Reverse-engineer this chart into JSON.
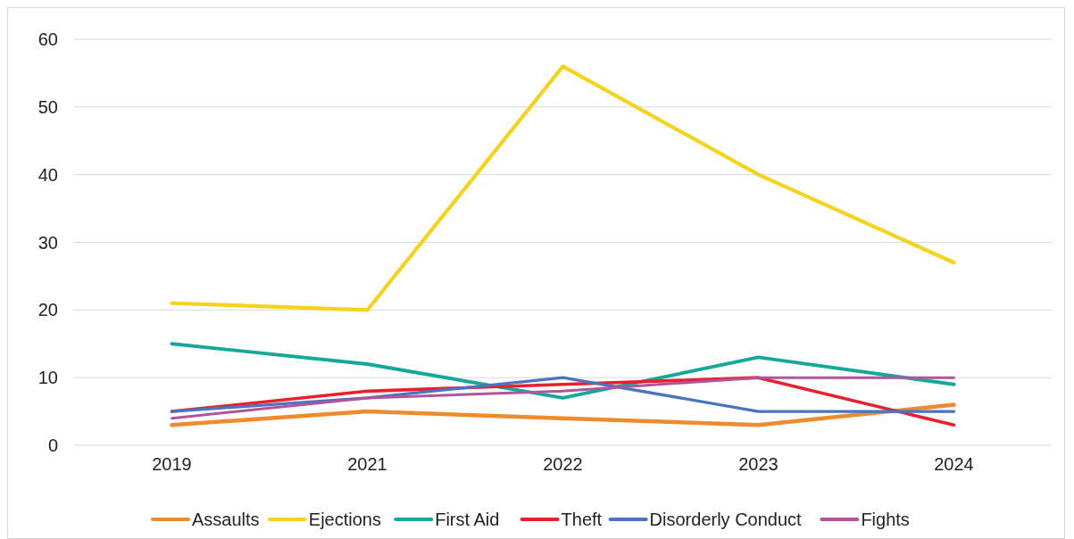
{
  "chart_data": {
    "type": "line",
    "categories": [
      "2019",
      "2021",
      "2022",
      "2023",
      "2024"
    ],
    "series": [
      {
        "name": "Assaults",
        "color": "#ed8b2e",
        "values": [
          3,
          5,
          4,
          3,
          6
        ]
      },
      {
        "name": "Ejections",
        "color": "#f5d31c",
        "values": [
          21,
          20,
          56,
          40,
          27
        ]
      },
      {
        "name": "First Aid",
        "color": "#14a89a",
        "values": [
          15,
          12,
          7,
          13,
          9
        ]
      },
      {
        "name": "Theft",
        "color": "#e8202e",
        "values": [
          5,
          8,
          9,
          10,
          3
        ]
      },
      {
        "name": "Disorderly Conduct",
        "color": "#4a73c0",
        "values": [
          5,
          7,
          10,
          5,
          5
        ]
      },
      {
        "name": "Fights",
        "color": "#b0559b",
        "values": [
          4,
          7,
          8,
          10,
          10
        ]
      }
    ],
    "ylim": [
      0,
      60
    ],
    "yticks": [
      0,
      10,
      20,
      30,
      40,
      50,
      60
    ],
    "grid": "y",
    "legend": "bottom",
    "marker": "none",
    "line_style": "solid"
  }
}
